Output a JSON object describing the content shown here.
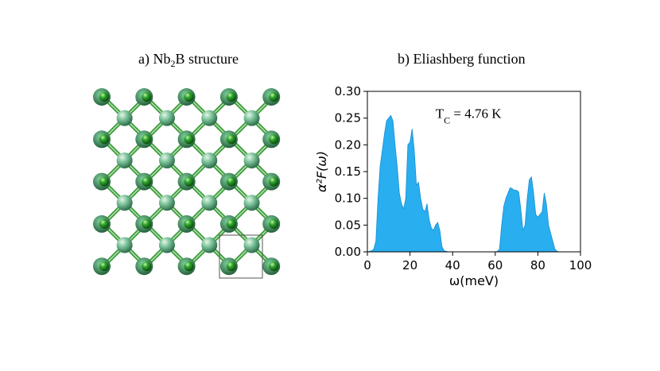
{
  "panel_a": {
    "title_prefix": "a) Nb",
    "title_sub": "2",
    "title_suffix": "B structure"
  },
  "panel_b": {
    "title": "b) Eliashberg function",
    "annotation_prefix": "T",
    "annotation_sub": "C",
    "annotation_suffix": " = 4.76 K"
  },
  "colors": {
    "fill": "#29aef0",
    "bond": "#3f9b3f",
    "nb_atom": "#4f9a74",
    "b_atom": "#1b8a1b",
    "axis": "#000000"
  },
  "chart_data": {
    "type": "area",
    "xlabel": "ω(meV)",
    "ylabel": "α²F(ω)",
    "xlim": [
      0,
      100
    ],
    "ylim": [
      0,
      0.3
    ],
    "xticks": [
      "0",
      "20",
      "40",
      "60",
      "80",
      "100"
    ],
    "yticks": [
      "0.00",
      "0.05",
      "0.10",
      "0.15",
      "0.20",
      "0.25",
      "0.30"
    ],
    "series": [
      {
        "x": [
          0,
          2,
          3,
          4,
          5,
          6,
          7,
          8,
          9,
          10,
          11,
          12,
          13,
          14,
          15,
          16,
          17,
          18,
          19,
          20,
          21,
          22,
          23,
          24,
          25,
          26,
          27,
          28,
          29,
          30,
          31,
          32,
          33,
          34,
          35,
          36,
          38,
          40,
          50,
          60,
          61,
          62,
          63,
          64,
          65,
          66,
          67,
          68,
          69,
          70,
          71,
          72,
          73,
          74,
          75,
          76,
          77,
          78,
          79,
          80,
          81,
          82,
          83,
          84,
          85,
          86,
          87,
          88,
          89,
          90,
          100
        ],
        "y": [
          0,
          0.002,
          0.005,
          0.02,
          0.1,
          0.16,
          0.19,
          0.22,
          0.245,
          0.25,
          0.255,
          0.245,
          0.2,
          0.16,
          0.11,
          0.09,
          0.08,
          0.1,
          0.2,
          0.205,
          0.23,
          0.19,
          0.125,
          0.13,
          0.1,
          0.08,
          0.075,
          0.09,
          0.06,
          0.045,
          0.04,
          0.05,
          0.055,
          0.04,
          0.01,
          0.002,
          0,
          0,
          0,
          0,
          0.001,
          0.005,
          0.05,
          0.085,
          0.1,
          0.11,
          0.12,
          0.118,
          0.115,
          0.115,
          0.112,
          0.08,
          0.04,
          0.05,
          0.1,
          0.135,
          0.14,
          0.11,
          0.07,
          0.065,
          0.07,
          0.075,
          0.11,
          0.09,
          0.05,
          0.035,
          0.02,
          0.005,
          0.001,
          0,
          0
        ]
      }
    ]
  }
}
